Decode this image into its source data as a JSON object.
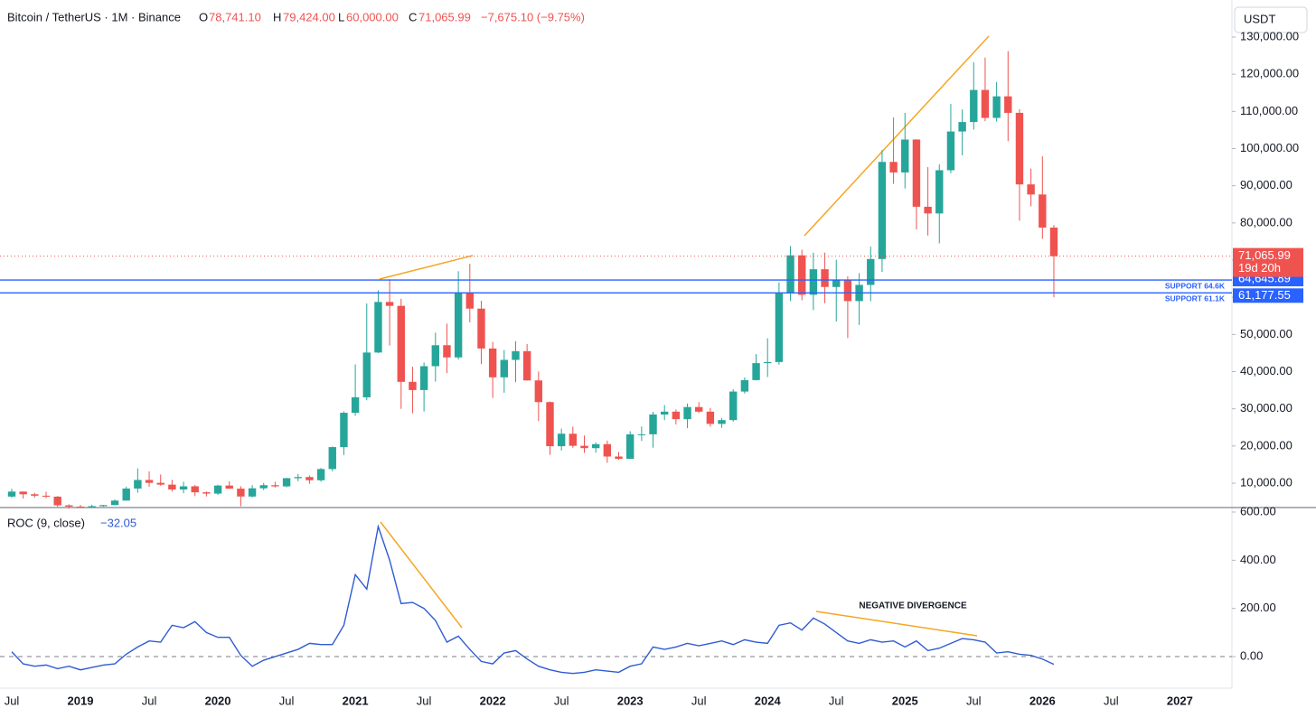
{
  "header": {
    "symbol": "Bitcoin / TetherUS · 1M · Binance",
    "o_label": "O",
    "open": "78,741.10",
    "h_label": "H",
    "high": "79,424.00",
    "l_label": "L",
    "low": "60,000.00",
    "c_label": "C",
    "close": "71,065.99",
    "change": "−7,675.10 (−9.75%)",
    "currency": "USDT"
  },
  "chart_data": [
    {
      "type": "candlestick",
      "up_color": "#26a69a",
      "down_color": "#ef5350",
      "categories": [
        "2018-07",
        "2018-08",
        "2018-09",
        "2018-10",
        "2018-11",
        "2018-12",
        "2019-01",
        "2019-02",
        "2019-03",
        "2019-04",
        "2019-05",
        "2019-06",
        "2019-07",
        "2019-08",
        "2019-09",
        "2019-10",
        "2019-11",
        "2019-12",
        "2020-01",
        "2020-02",
        "2020-03",
        "2020-04",
        "2020-05",
        "2020-06",
        "2020-07",
        "2020-08",
        "2020-09",
        "2020-10",
        "2020-11",
        "2020-12",
        "2021-01",
        "2021-02",
        "2021-03",
        "2021-04",
        "2021-05",
        "2021-06",
        "2021-07",
        "2021-08",
        "2021-09",
        "2021-10",
        "2021-11",
        "2021-12",
        "2022-01",
        "2022-02",
        "2022-03",
        "2022-04",
        "2022-05",
        "2022-06",
        "2022-07",
        "2022-08",
        "2022-09",
        "2022-10",
        "2022-11",
        "2022-12",
        "2023-01",
        "2023-02",
        "2023-03",
        "2023-04",
        "2023-05",
        "2023-06",
        "2023-07",
        "2023-08",
        "2023-09",
        "2023-10",
        "2023-11",
        "2023-12",
        "2024-01",
        "2024-02",
        "2024-03",
        "2024-04",
        "2024-05",
        "2024-06",
        "2024-07",
        "2024-08",
        "2024-09",
        "2024-10",
        "2024-11",
        "2024-12",
        "2025-01",
        "2025-02",
        "2025-03",
        "2025-04",
        "2025-05",
        "2025-06",
        "2025-07",
        "2025-08",
        "2025-09",
        "2025-10",
        "2025-11",
        "2025-12",
        "2026-01",
        "2026-02"
      ],
      "open": [
        6391,
        7730,
        7011,
        6626,
        6371,
        4041,
        3702,
        3434,
        3813,
        4103,
        5320,
        8555,
        10855,
        10085,
        9600,
        8293,
        9150,
        7540,
        7195,
        9352,
        8523,
        6410,
        8620,
        9448,
        9138,
        11335,
        11649,
        10776,
        13791,
        19695,
        28923,
        33092,
        45135,
        58740,
        57694,
        37253,
        35045,
        41461,
        47100,
        43824,
        61300,
        56950,
        46216,
        38466,
        43160,
        45510,
        37630,
        31801,
        19942,
        23293,
        20050,
        19423,
        20490,
        17164,
        16542,
        23125,
        23141,
        28465,
        29233,
        27210,
        30472,
        29232,
        25941,
        26962,
        34639,
        37723,
        42283,
        42580,
        61130,
        71280,
        60672,
        67540,
        62772,
        64628,
        58973,
        63328,
        70292,
        96408,
        93576,
        102429,
        84350,
        82548,
        94172,
        104591,
        107135,
        115764,
        108246,
        114049,
        109608,
        90360,
        87650,
        78741.1
      ],
      "high": [
        8488,
        7750,
        7410,
        7680,
        6540,
        4313,
        4140,
        4198,
        4140,
        5600,
        9074,
        13970,
        13180,
        12325,
        10900,
        10370,
        9505,
        7750,
        9578,
        10500,
        9188,
        9460,
        10067,
        10380,
        11444,
        12468,
        12050,
        14100,
        19863,
        29300,
        41950,
        58352,
        61844,
        64854,
        59592,
        41330,
        42448,
        50500,
        52920,
        67000,
        69000,
        59053,
        47990,
        45821,
        48189,
        47444,
        40023,
        31982,
        24668,
        25211,
        22799,
        20988,
        21446,
        18387,
        23960,
        25250,
        29184,
        31000,
        29820,
        31431,
        31804,
        30244,
        27488,
        35280,
        38450,
        44700,
        48969,
        64000,
        73777,
        72797,
        71979,
        71997,
        70079,
        65659,
        66498,
        73620,
        99588,
        108353,
        109588,
        102500,
        95000,
        95758,
        111980,
        110530,
        123218,
        124474,
        117900,
        126200,
        110600,
        94600,
        97900,
        79424
      ],
      "low": [
        6071,
        5880,
        6100,
        6000,
        3652,
        3156,
        3350,
        3400,
        3670,
        4040,
        5300,
        7440,
        9000,
        9320,
        7710,
        7300,
        6515,
        6435,
        6871,
        8445,
        3782,
        6150,
        8117,
        8833,
        8893,
        10518,
        9825,
        10374,
        13195,
        17572,
        28130,
        32296,
        45000,
        47044,
        30000,
        28805,
        29278,
        37332,
        39600,
        43283,
        53256,
        42000,
        32917,
        34322,
        37155,
        37578,
        26700,
        17622,
        18782,
        19520,
        18125,
        18190,
        15476,
        16256,
        16500,
        21351,
        19549,
        26942,
        25810,
        24800,
        28861,
        25166,
        24901,
        26538,
        34097,
        37615,
        38555,
        41884,
        59005,
        59191,
        56552,
        58402,
        53485,
        49000,
        52550,
        58946,
        66835,
        90500,
        89256,
        78258,
        76606,
        74508,
        93377,
        98200,
        105100,
        107350,
        107255,
        102000,
        80600,
        84450,
        75700,
        60000
      ],
      "close": [
        7730,
        7011,
        6626,
        6371,
        4041,
        3702,
        3434,
        3813,
        4103,
        5320,
        8555,
        10855,
        10085,
        9600,
        8293,
        9150,
        7540,
        7195,
        9352,
        8523,
        6410,
        8620,
        9448,
        9138,
        11335,
        11649,
        10776,
        13791,
        19695,
        28923,
        33092,
        45135,
        58740,
        57694,
        37253,
        35045,
        41461,
        47100,
        43824,
        61300,
        56950,
        46216,
        38466,
        43160,
        45510,
        37630,
        31801,
        19942,
        23293,
        20050,
        19423,
        20490,
        17164,
        16542,
        23125,
        23141,
        28465,
        29233,
        27210,
        30472,
        29232,
        25941,
        26962,
        34639,
        37723,
        42283,
        42580,
        61130,
        71280,
        60672,
        67540,
        62772,
        64628,
        58973,
        63328,
        70292,
        96408,
        93576,
        102429,
        84350,
        82548,
        94172,
        104591,
        107135,
        115764,
        108246,
        114049,
        109608,
        90360,
        87650,
        78741.1,
        71065.99
      ],
      "ylim": [
        3440,
        139960
      ],
      "yticks": [
        {
          "value": 10000,
          "label": "10,000.00"
        },
        {
          "value": 20000,
          "label": "20,000.00"
        },
        {
          "value": 30000,
          "label": "30,000.00"
        },
        {
          "value": 40000,
          "label": "40,000.00"
        },
        {
          "value": 50000,
          "label": "50,000.00"
        },
        {
          "value": 60000,
          "label": "60,000.00"
        },
        {
          "value": 70000,
          "label": "70,000.00"
        },
        {
          "value": 80000,
          "label": "80,000.00"
        },
        {
          "value": 90000,
          "label": "90,000.00"
        },
        {
          "value": 100000,
          "label": "100,000.00"
        },
        {
          "value": 110000,
          "label": "110,000.00"
        },
        {
          "value": 120000,
          "label": "120,000.00"
        },
        {
          "value": 130000,
          "label": "130,000.00"
        }
      ],
      "last_price": {
        "value": 71065.99,
        "label": "71,065.99",
        "countdown": "19d 20h",
        "color": "#ef5350"
      },
      "levels": [
        {
          "name": "SUPPORT 64.6K",
          "value": 64645.89,
          "label": "64,645.89",
          "color": "#2962ff"
        },
        {
          "name": "SUPPORT 61.1K",
          "value": 61177.55,
          "label": "61,177.55",
          "color": "#2962ff"
        }
      ],
      "xticks": [
        {
          "value": "2018-07",
          "label": "Jul"
        },
        {
          "value": "2019-01",
          "label": "2019"
        },
        {
          "value": "2019-07",
          "label": "Jul"
        },
        {
          "value": "2020-01",
          "label": "2020"
        },
        {
          "value": "2020-07",
          "label": "Jul"
        },
        {
          "value": "2021-01",
          "label": "2021"
        },
        {
          "value": "2021-07",
          "label": "Jul"
        },
        {
          "value": "2022-01",
          "label": "2022"
        },
        {
          "value": "2022-07",
          "label": "Jul"
        },
        {
          "value": "2023-01",
          "label": "2023"
        },
        {
          "value": "2023-07",
          "label": "Jul"
        },
        {
          "value": "2024-01",
          "label": "2024"
        },
        {
          "value": "2024-07",
          "label": "Jul"
        },
        {
          "value": "2025-01",
          "label": "2025"
        },
        {
          "value": "2025-07",
          "label": "Jul"
        },
        {
          "value": "2026-01",
          "label": "2026"
        },
        {
          "value": "2026-07",
          "label": "Jul"
        },
        {
          "value": "2027-01",
          "label": "2027"
        }
      ]
    },
    {
      "type": "line",
      "title": "ROC (9, close)",
      "last_label": "−32.05",
      "annotation": "NEGATIVE DIVERGENCE",
      "series": [
        {
          "name": "ROC",
          "color": "#2f5bd3",
          "values": [
            20,
            -30,
            -40,
            -35,
            -50,
            -40,
            -55,
            -45,
            -35,
            -30,
            10,
            40,
            65,
            60,
            130,
            120,
            145,
            100,
            80,
            80,
            5,
            -40,
            -15,
            0,
            15,
            30,
            55,
            50,
            50,
            130,
            340,
            280,
            540,
            400,
            220,
            225,
            200,
            150,
            60,
            85,
            30,
            -20,
            -30,
            15,
            25,
            -10,
            -40,
            -55,
            -65,
            -70,
            -65,
            -55,
            -60,
            -65,
            -40,
            -30,
            40,
            30,
            40,
            55,
            45,
            55,
            65,
            50,
            70,
            60,
            55,
            130,
            140,
            110,
            160,
            135,
            100,
            65,
            55,
            70,
            60,
            65,
            40,
            65,
            25,
            35,
            55,
            75,
            70,
            60,
            15,
            20,
            10,
            5,
            -10,
            -32.05
          ]
        }
      ],
      "ylim": [
        -131,
        615
      ],
      "yticks": [
        {
          "value": 0,
          "label": "0.00"
        },
        {
          "value": 200,
          "label": "200.00"
        },
        {
          "value": 400,
          "label": "400.00"
        },
        {
          "value": 600,
          "label": "600.00"
        }
      ]
    }
  ]
}
